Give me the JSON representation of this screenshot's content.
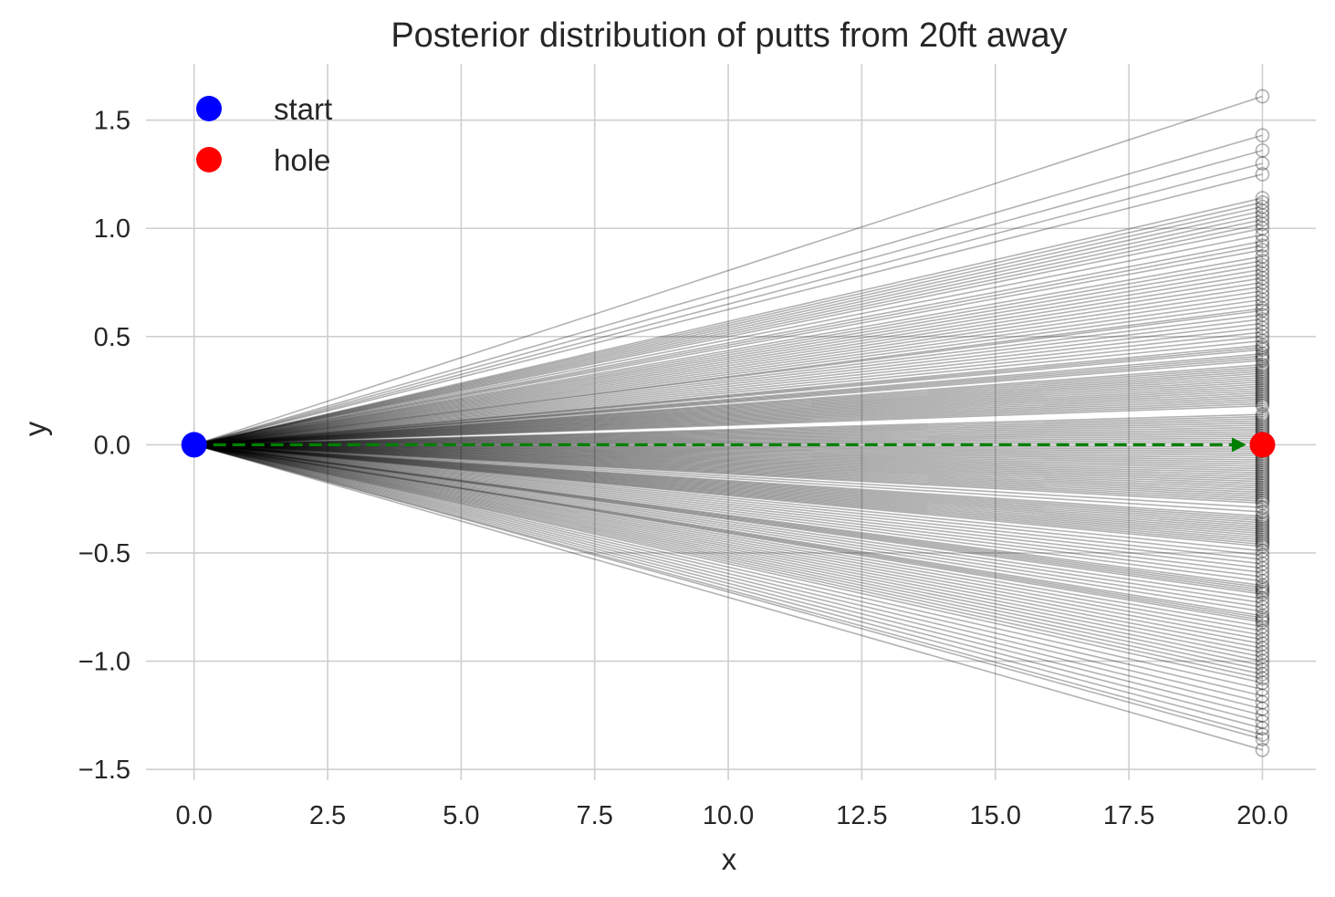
{
  "chart_data": {
    "type": "line",
    "title": "Posterior distribution of putts from 20ft away",
    "xlabel": "x",
    "ylabel": "y",
    "xlim": [
      -0.9,
      21.0
    ],
    "ylim": [
      -1.55,
      1.76
    ],
    "xticks": [
      0.0,
      2.5,
      5.0,
      7.5,
      10.0,
      12.5,
      15.0,
      17.5,
      20.0
    ],
    "xtick_labels": [
      "0.0",
      "2.5",
      "5.0",
      "7.5",
      "10.0",
      "12.5",
      "15.0",
      "17.5",
      "20.0"
    ],
    "yticks": [
      -1.5,
      -1.0,
      -0.5,
      0.0,
      0.5,
      1.0,
      1.5
    ],
    "ytick_labels": [
      "−1.5",
      "−1.0",
      "−0.5",
      "0.0",
      "0.5",
      "1.0",
      "1.5"
    ],
    "grid": true,
    "legend_position": "top-left",
    "start": {
      "name": "start",
      "x": 0,
      "y": 0,
      "color": "#0000ff"
    },
    "hole": {
      "name": "hole",
      "x": 20,
      "y": 0,
      "color": "#ff0000"
    },
    "target_arrow": {
      "x0": 0,
      "y0": 0,
      "x1": 19.7,
      "y1": 0,
      "color": "#008000",
      "style": "dashed"
    },
    "putt_end_x": 20,
    "putt_line_color": "#000000",
    "putt_end_y": [
      1.61,
      1.43,
      1.36,
      1.3,
      1.25,
      1.14,
      1.12,
      1.1,
      1.08,
      1.06,
      1.04,
      1.02,
      1.0,
      0.97,
      0.94,
      0.92,
      0.9,
      0.87,
      0.85,
      0.83,
      0.81,
      0.79,
      0.77,
      0.75,
      0.73,
      0.71,
      0.69,
      0.67,
      0.65,
      0.63,
      0.62,
      0.6,
      0.58,
      0.56,
      0.54,
      0.52,
      0.5,
      0.48,
      0.46,
      0.45,
      0.44,
      0.42,
      0.41,
      0.4,
      0.39,
      0.37,
      0.36,
      0.35,
      0.34,
      0.33,
      0.32,
      0.31,
      0.3,
      0.29,
      0.28,
      0.27,
      0.26,
      0.25,
      0.24,
      0.23,
      0.22,
      0.21,
      0.2,
      0.19,
      0.18,
      0.14,
      0.13,
      0.12,
      0.11,
      0.1,
      0.09,
      0.08,
      0.07,
      0.06,
      0.05,
      0.04,
      0.03,
      0.02,
      0.01,
      -0.01,
      -0.02,
      -0.03,
      -0.04,
      -0.05,
      -0.06,
      -0.07,
      -0.08,
      -0.09,
      -0.1,
      -0.11,
      -0.12,
      -0.13,
      -0.14,
      -0.15,
      -0.16,
      -0.17,
      -0.18,
      -0.19,
      -0.2,
      -0.21,
      -0.22,
      -0.23,
      -0.24,
      -0.25,
      -0.26,
      -0.27,
      -0.29,
      -0.31,
      -0.33,
      -0.34,
      -0.35,
      -0.36,
      -0.37,
      -0.38,
      -0.39,
      -0.4,
      -0.41,
      -0.42,
      -0.43,
      -0.44,
      -0.45,
      -0.46,
      -0.47,
      -0.49,
      -0.51,
      -0.53,
      -0.55,
      -0.57,
      -0.59,
      -0.61,
      -0.63,
      -0.65,
      -0.66,
      -0.67,
      -0.68,
      -0.69,
      -0.71,
      -0.73,
      -0.75,
      -0.77,
      -0.79,
      -0.8,
      -0.81,
      -0.82,
      -0.84,
      -0.86,
      -0.88,
      -0.9,
      -0.92,
      -0.94,
      -0.96,
      -0.98,
      -1.0,
      -1.02,
      -1.04,
      -1.06,
      -1.08,
      -1.1,
      -1.13,
      -1.16,
      -1.19,
      -1.22,
      -1.25,
      -1.28,
      -1.31,
      -1.34,
      -1.36,
      -1.41
    ]
  }
}
